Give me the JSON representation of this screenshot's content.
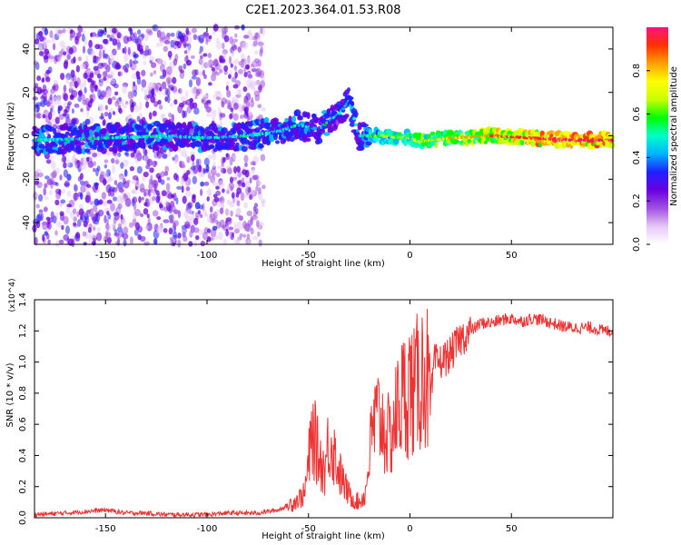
{
  "title": "C2E1.2023.364.01.53.R08",
  "colors": {
    "snr_line": "#ee3333",
    "axis": "#000000",
    "background": "#ffffff"
  },
  "chart_data": [
    {
      "type": "heatmap",
      "name": "spectrogram",
      "xlabel": "Height of straight line (km)",
      "ylabel": "Frequency (Hz)",
      "xlim": [
        -185,
        100
      ],
      "ylim": [
        -50,
        50
      ],
      "x_ticks": [
        -150,
        -100,
        -50,
        0,
        50
      ],
      "x_tick_labels": [
        "-150",
        "-100",
        "-50",
        "0",
        "50"
      ],
      "y_ticks": [
        40,
        20,
        0,
        -20,
        -40
      ],
      "y_tick_labels": [
        "40",
        "20",
        "0",
        "-20",
        "-40"
      ],
      "ridge": {
        "x": [
          -185,
          -150,
          -120,
          -100,
          -80,
          -65,
          -55,
          -45,
          -35,
          -30,
          -25,
          -15,
          0,
          5,
          10,
          20,
          40,
          60,
          80,
          100
        ],
        "frequency": [
          -2,
          -1,
          0,
          -1,
          0,
          2,
          5,
          3,
          10,
          16,
          0,
          0,
          -1,
          -3,
          -2,
          -1,
          0,
          -1,
          -2,
          -2
        ]
      },
      "colorbar": {
        "label": "Normalized spectral amplitude",
        "range": [
          0,
          1
        ],
        "ticks": [
          0.0,
          0.2,
          0.4,
          0.6,
          0.8
        ],
        "tick_labels": [
          "0.0",
          "0.2",
          "0.4",
          "0.6",
          "0.8"
        ],
        "colors": [
          "#ffffff",
          "#e6c8f5",
          "#a050e0",
          "#6a00e0",
          "#2020ff",
          "#00b4ff",
          "#00ffc8",
          "#00ff00",
          "#c8ff00",
          "#ffff00",
          "#ffa000",
          "#ff3000",
          "#ff1080"
        ]
      }
    },
    {
      "type": "line",
      "name": "snr",
      "xlabel": "Height of straight line (km)",
      "ylabel": "SNR (10 * v/v)",
      "y_multiplier": "(x10^4)",
      "xlim": [
        -185,
        100
      ],
      "ylim": [
        0,
        1.4
      ],
      "x_ticks": [
        -150,
        -100,
        -50,
        0,
        50
      ],
      "x_tick_labels": [
        "-150",
        "-100",
        "-50",
        "0",
        "50"
      ],
      "y_ticks": [
        0.0,
        0.2,
        0.4,
        0.6,
        0.8,
        1.0,
        1.2,
        1.4
      ],
      "y_tick_labels": [
        "0.0",
        "0.2",
        "0.4",
        "0.6",
        "0.8",
        "1.0",
        "1.2",
        "1.4"
      ],
      "series": [
        {
          "name": "SNR",
          "x": [
            -185,
            -170,
            -160,
            -150,
            -140,
            -130,
            -120,
            -110,
            -100,
            -90,
            -80,
            -75,
            -70,
            -65,
            -60,
            -55,
            -52,
            -50,
            -48,
            -45,
            -42,
            -40,
            -38,
            -35,
            -32,
            -30,
            -28,
            -25,
            -22,
            -20,
            -18,
            -15,
            -12,
            -10,
            -8,
            -5,
            -2,
            0,
            2,
            5,
            8,
            10,
            12,
            15,
            20,
            25,
            30,
            35,
            40,
            45,
            50,
            55,
            60,
            65,
            70,
            75,
            80,
            85,
            90,
            95,
            100
          ],
          "y": [
            0.02,
            0.03,
            0.04,
            0.05,
            0.03,
            0.03,
            0.02,
            0.02,
            0.02,
            0.03,
            0.03,
            0.03,
            0.04,
            0.05,
            0.08,
            0.12,
            0.15,
            0.35,
            0.55,
            0.4,
            0.3,
            0.5,
            0.45,
            0.3,
            0.2,
            0.15,
            0.12,
            0.1,
            0.15,
            0.4,
            0.6,
            0.65,
            0.55,
            0.5,
            0.6,
            0.75,
            0.8,
            0.85,
            0.8,
            0.9,
            0.95,
            0.7,
            1.0,
            1.0,
            1.05,
            1.15,
            1.2,
            1.25,
            1.25,
            1.27,
            1.28,
            1.26,
            1.28,
            1.27,
            1.25,
            1.23,
            1.22,
            1.22,
            1.22,
            1.2,
            1.2
          ]
        }
      ]
    }
  ]
}
